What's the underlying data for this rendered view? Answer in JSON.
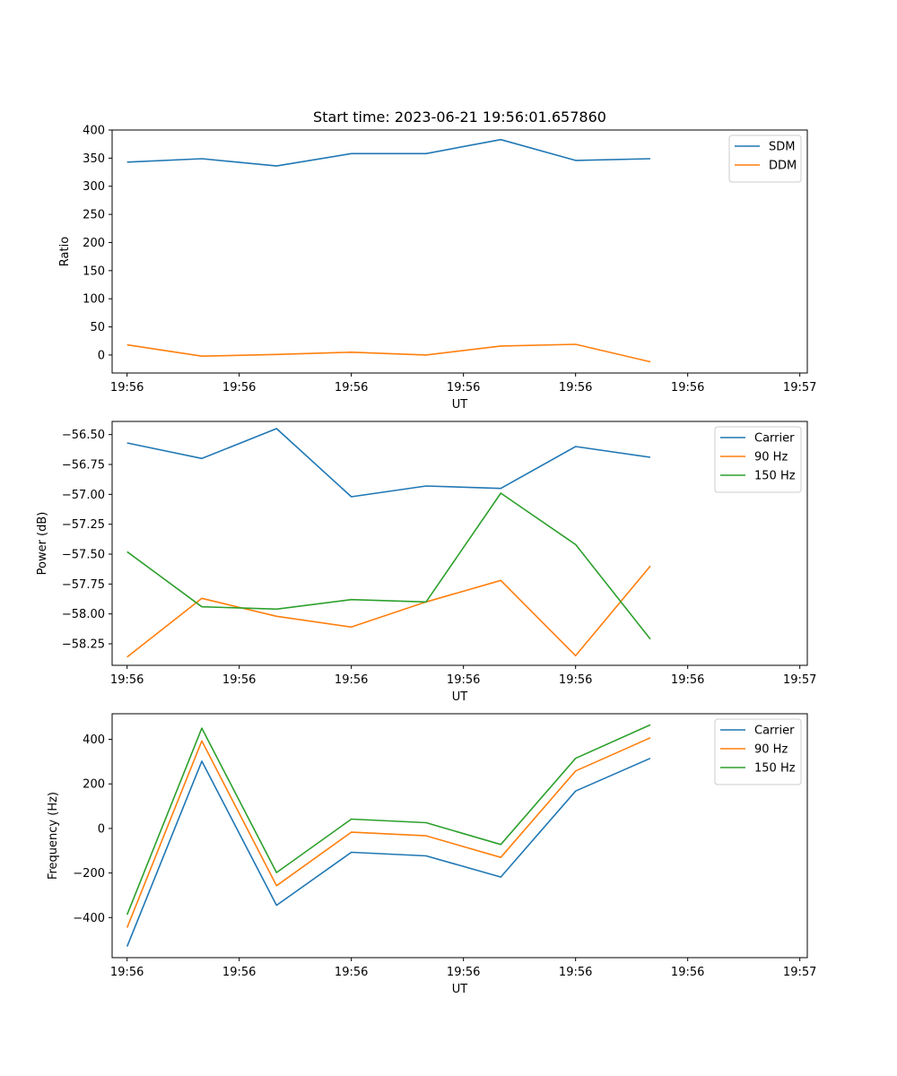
{
  "chart_data": [
    {
      "type": "line",
      "title": "Start time: 2023-06-21 19:56:01.657860",
      "xlabel": "UT",
      "ylabel": "Ratio",
      "x": [
        1,
        2,
        3,
        4,
        5,
        6,
        7,
        8
      ],
      "xlim": [
        0.8,
        10.1
      ],
      "x_ticks": [
        {
          "x": 1,
          "label": "19:56"
        },
        {
          "x": 2.5,
          "label": "19:56"
        },
        {
          "x": 4,
          "label": "19:56"
        },
        {
          "x": 5.5,
          "label": "19:56"
        },
        {
          "x": 7,
          "label": "19:56"
        },
        {
          "x": 8.5,
          "label": "19:56"
        },
        {
          "x": 10,
          "label": "19:57"
        }
      ],
      "ylim": [
        -32,
        400
      ],
      "y_ticks": [
        {
          "y": 400,
          "label": "400"
        },
        {
          "y": 350,
          "label": "350"
        },
        {
          "y": 300,
          "label": "300"
        },
        {
          "y": 250,
          "label": "250"
        },
        {
          "y": 200,
          "label": "200"
        },
        {
          "y": 150,
          "label": "150"
        },
        {
          "y": 100,
          "label": "100"
        },
        {
          "y": 50,
          "label": "50"
        },
        {
          "y": 0,
          "label": "0"
        }
      ],
      "grid": false,
      "legend": "upper right",
      "series": [
        {
          "name": "SDM",
          "color": "#1f77b4",
          "values": [
            343,
            349,
            336,
            358,
            358,
            383,
            346,
            349
          ]
        },
        {
          "name": "DDM",
          "color": "#ff7f0e",
          "values": [
            18,
            -2,
            1,
            5,
            0,
            16,
            19,
            -12
          ]
        }
      ]
    },
    {
      "type": "line",
      "title": "",
      "xlabel": "UT",
      "ylabel": "Power (dB)",
      "x": [
        1,
        2,
        3,
        4,
        5,
        6,
        7,
        8
      ],
      "xlim": [
        0.8,
        10.1
      ],
      "x_ticks": [
        {
          "x": 1,
          "label": "19:56"
        },
        {
          "x": 2.5,
          "label": "19:56"
        },
        {
          "x": 4,
          "label": "19:56"
        },
        {
          "x": 5.5,
          "label": "19:56"
        },
        {
          "x": 7,
          "label": "19:56"
        },
        {
          "x": 8.5,
          "label": "19:56"
        },
        {
          "x": 10,
          "label": "19:57"
        }
      ],
      "ylim": [
        -58.43,
        -56.39
      ],
      "y_ticks": [
        {
          "y": -56.5,
          "label": "−56.50"
        },
        {
          "y": -56.75,
          "label": "−56.75"
        },
        {
          "y": -57.0,
          "label": "−57.00"
        },
        {
          "y": -57.25,
          "label": "−57.25"
        },
        {
          "y": -57.5,
          "label": "−57.50"
        },
        {
          "y": -57.75,
          "label": "−57.75"
        },
        {
          "y": -58.0,
          "label": "−58.00"
        },
        {
          "y": -58.25,
          "label": "−58.25"
        }
      ],
      "grid": false,
      "legend": "upper right",
      "series": [
        {
          "name": "Carrier",
          "color": "#1f77b4",
          "values": [
            -56.57,
            -56.7,
            -56.45,
            -57.02,
            -56.93,
            -56.95,
            -56.6,
            -56.69
          ]
        },
        {
          "name": "90 Hz",
          "color": "#ff7f0e",
          "values": [
            -58.36,
            -57.87,
            -58.02,
            -58.11,
            -57.9,
            -57.72,
            -58.35,
            -57.6
          ]
        },
        {
          "name": "150 Hz",
          "color": "#2ca02c",
          "values": [
            -57.48,
            -57.94,
            -57.96,
            -57.88,
            -57.9,
            -56.99,
            -57.42,
            -58.21
          ]
        }
      ]
    },
    {
      "type": "line",
      "title": "",
      "xlabel": "UT",
      "ylabel": "Frequency (Hz)",
      "x": [
        1,
        2,
        3,
        4,
        5,
        6,
        7,
        8
      ],
      "xlim": [
        0.8,
        10.1
      ],
      "x_ticks": [
        {
          "x": 1,
          "label": "19:56"
        },
        {
          "x": 2.5,
          "label": "19:56"
        },
        {
          "x": 4,
          "label": "19:56"
        },
        {
          "x": 5.5,
          "label": "19:56"
        },
        {
          "x": 7,
          "label": "19:56"
        },
        {
          "x": 8.5,
          "label": "19:56"
        },
        {
          "x": 10,
          "label": "19:57"
        }
      ],
      "ylim": [
        -580,
        515
      ],
      "y_ticks": [
        {
          "y": 400,
          "label": "400"
        },
        {
          "y": 200,
          "label": "200"
        },
        {
          "y": 0,
          "label": "0"
        },
        {
          "y": -200,
          "label": "−200"
        },
        {
          "y": -400,
          "label": "−400"
        }
      ],
      "grid": false,
      "legend": "upper right",
      "series": [
        {
          "name": "Carrier",
          "color": "#1f77b4",
          "values": [
            -530,
            302,
            -345,
            -107,
            -123,
            -218,
            168,
            315
          ]
        },
        {
          "name": "90 Hz",
          "color": "#ff7f0e",
          "values": [
            -445,
            393,
            -257,
            -17,
            -33,
            -130,
            258,
            407
          ]
        },
        {
          "name": "150 Hz",
          "color": "#2ca02c",
          "values": [
            -387,
            450,
            -198,
            42,
            26,
            -72,
            315,
            465
          ]
        }
      ]
    }
  ]
}
